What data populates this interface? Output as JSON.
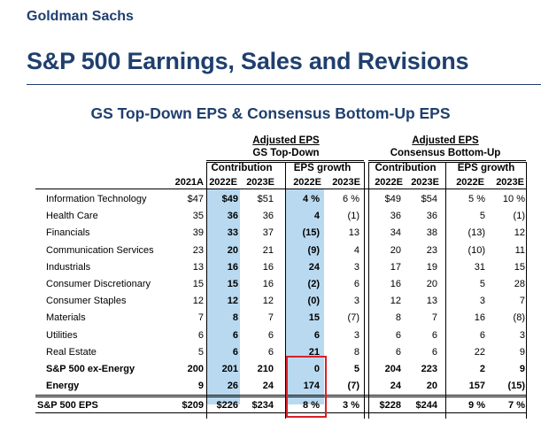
{
  "brand": "Goldman Sachs",
  "title": "S&P 500 Earnings, Sales and Revisions",
  "subtitle": "GS Top-Down EPS & Consensus Bottom-Up EPS",
  "groups": {
    "gs": {
      "title": "Adjusted EPS",
      "subtitle": "GS Top-Down"
    },
    "cons": {
      "title": "Adjusted EPS",
      "subtitle": "Consensus Bottom-Up"
    },
    "contribution": "Contribution",
    "eps_growth": "EPS growth"
  },
  "columns": [
    "2021A",
    "2022E",
    "2023E",
    "2022E",
    "2023E",
    "2022E",
    "2023E",
    "2022E",
    "2023E"
  ],
  "rows": [
    {
      "label": "Information Technology",
      "v": [
        "$47",
        "$49",
        "$51",
        "4 %",
        "6 %",
        "$49",
        "$54",
        "5 %",
        "10 %"
      ]
    },
    {
      "label": "Health Care",
      "v": [
        "35",
        "36",
        "36",
        "4",
        "(1)",
        "36",
        "36",
        "5",
        "(1)"
      ]
    },
    {
      "label": "Financials",
      "v": [
        "39",
        "33",
        "37",
        "(15)",
        "13",
        "34",
        "38",
        "(13)",
        "12"
      ]
    },
    {
      "label": "Communication Services",
      "v": [
        "23",
        "20",
        "21",
        "(9)",
        "4",
        "20",
        "23",
        "(10)",
        "11"
      ]
    },
    {
      "label": "Industrials",
      "v": [
        "13",
        "16",
        "16",
        "24",
        "3",
        "17",
        "19",
        "31",
        "15"
      ]
    },
    {
      "label": "Consumer Discretionary",
      "v": [
        "15",
        "15",
        "16",
        "(2)",
        "6",
        "16",
        "20",
        "5",
        "28"
      ]
    },
    {
      "label": "Consumer Staples",
      "v": [
        "12",
        "12",
        "12",
        "(0)",
        "3",
        "12",
        "13",
        "3",
        "7"
      ]
    },
    {
      "label": "Materials",
      "v": [
        "7",
        "8",
        "7",
        "15",
        "(7)",
        "8",
        "7",
        "16",
        "(8)"
      ]
    },
    {
      "label": "Utilities",
      "v": [
        "6",
        "6",
        "6",
        "6",
        "3",
        "6",
        "6",
        "6",
        "3"
      ]
    },
    {
      "label": "Real Estate",
      "v": [
        "5",
        "6",
        "6",
        "21",
        "8",
        "6",
        "6",
        "22",
        "9"
      ]
    },
    {
      "label": "S&P 500 ex-Energy",
      "v": [
        "200",
        "201",
        "210",
        "0",
        "5",
        "204",
        "223",
        "2",
        "9"
      ]
    },
    {
      "label": "Energy",
      "v": [
        "9",
        "26",
        "24",
        "174",
        "(7)",
        "24",
        "20",
        "157",
        "(15)"
      ]
    },
    {
      "label": "S&P 500 EPS",
      "v": [
        "$209",
        "$226",
        "$234",
        "8 %",
        "3 %",
        "$228",
        "$244",
        "9 %",
        "7 %"
      ]
    }
  ]
}
